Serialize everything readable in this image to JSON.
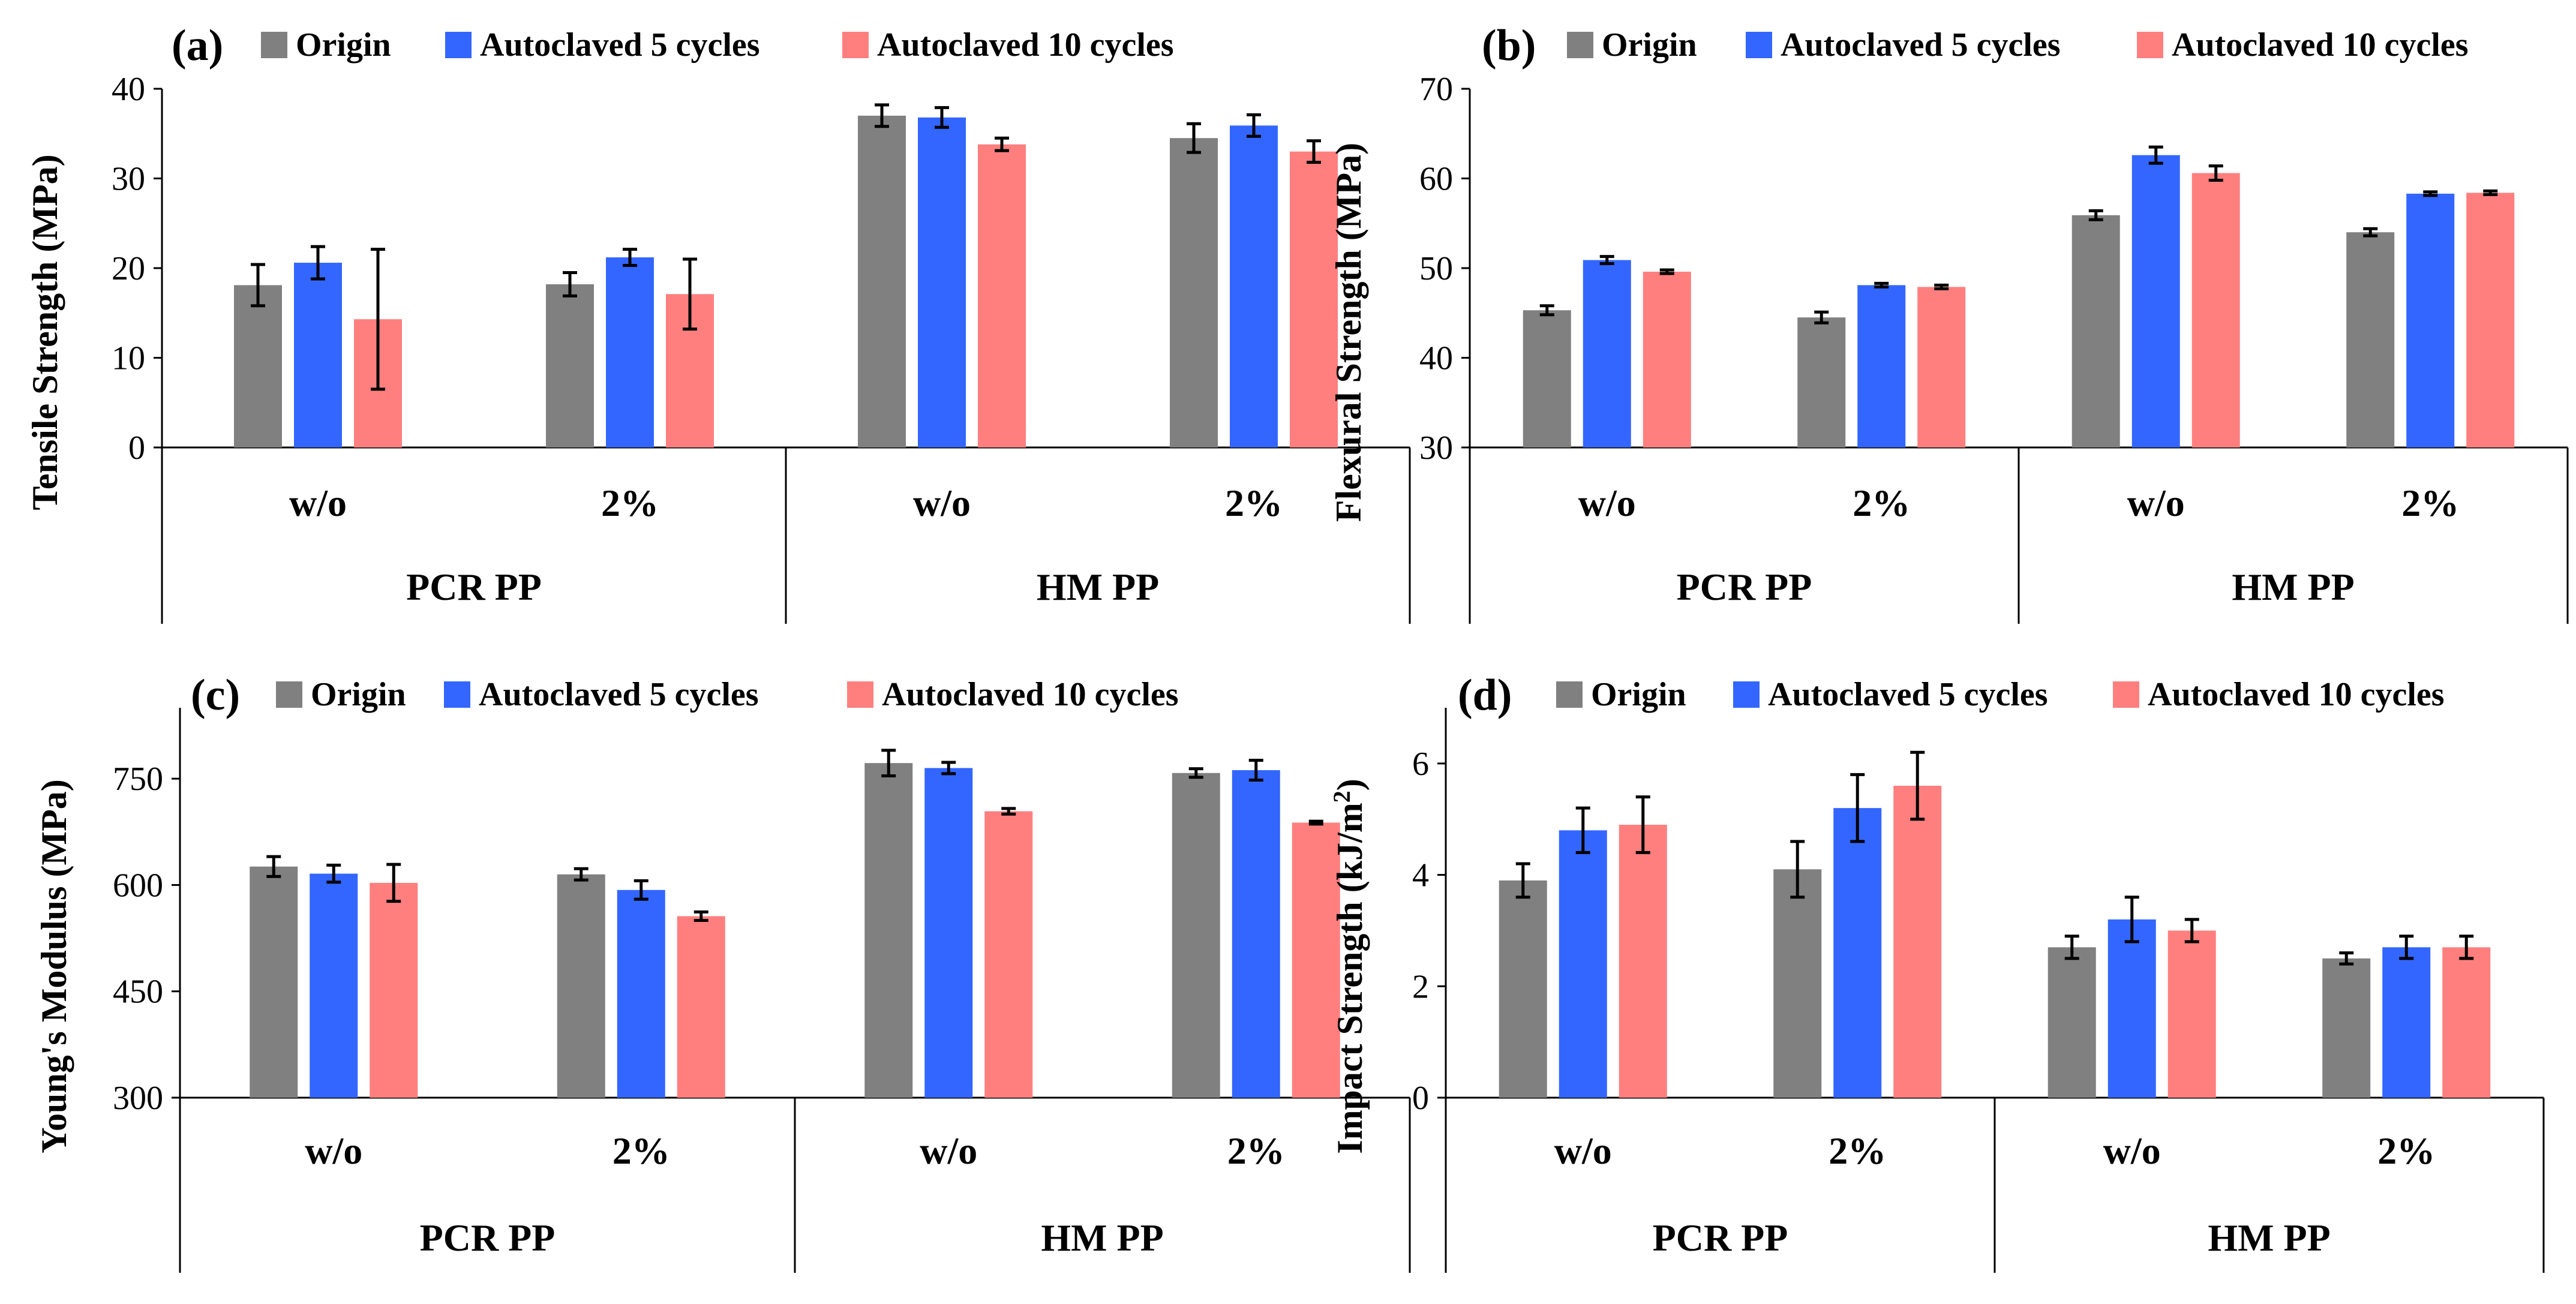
{
  "colors": {
    "origin": "#808080",
    "auto5": "#3366ff",
    "auto10": "#ff7f7f"
  },
  "chart_data": [
    {
      "type": "bar",
      "panel": "(a)",
      "ylabel": "Tensile Strength (MPa)",
      "ylim": [
        0,
        40
      ],
      "yticks": [
        "0",
        "10",
        "20",
        "30",
        "40"
      ],
      "tick_values": [
        0,
        10,
        20,
        30,
        40
      ],
      "categories": [
        "w/o",
        "2%",
        "w/o",
        "2%"
      ],
      "groups": [
        "PCR PP",
        "HM PP"
      ],
      "series": [
        {
          "name": "Origin",
          "values": [
            18.1,
            18.2,
            37.0,
            34.5
          ],
          "errors": [
            2.3,
            1.3,
            1.2,
            1.6
          ]
        },
        {
          "name": "Autoclaved 5 cycles",
          "values": [
            20.6,
            21.2,
            36.8,
            35.9
          ],
          "errors": [
            1.8,
            0.9,
            1.1,
            1.2
          ]
        },
        {
          "name": "Autoclaved 10 cycles",
          "values": [
            14.3,
            17.1,
            33.8,
            33.0
          ],
          "errors": [
            7.8,
            3.9,
            0.7,
            1.2
          ]
        }
      ]
    },
    {
      "type": "bar",
      "panel": "(b)",
      "ylabel": "Flexural Strength (MPa)",
      "ylim": [
        30,
        70
      ],
      "yticks": [
        "30",
        "40",
        "50",
        "60",
        "70"
      ],
      "tick_values": [
        30,
        40,
        50,
        60,
        70
      ],
      "categories": [
        "w/o",
        "2%",
        "w/o",
        "2%"
      ],
      "groups": [
        "PCR PP",
        "HM PP"
      ],
      "series": [
        {
          "name": "Origin",
          "values": [
            45.3,
            44.5,
            55.9,
            54.0
          ],
          "errors": [
            0.5,
            0.6,
            0.5,
            0.4
          ]
        },
        {
          "name": "Autoclaved 5 cycles",
          "values": [
            50.9,
            48.1,
            62.6,
            58.3
          ],
          "errors": [
            0.4,
            0.2,
            0.9,
            0.2
          ]
        },
        {
          "name": "Autoclaved 10 cycles",
          "values": [
            49.6,
            47.9,
            60.6,
            58.4
          ],
          "errors": [
            0.2,
            0.2,
            0.8,
            0.2
          ]
        }
      ]
    },
    {
      "type": "bar",
      "panel": "(c)",
      "ylabel": "Young's Modulus (MPa)",
      "ylim": [
        300,
        850
      ],
      "yticks": [
        "300",
        "450",
        "600",
        "750"
      ],
      "tick_values": [
        300,
        450,
        600,
        750
      ],
      "categories": [
        "w/o",
        "2%",
        "w/o",
        "2%"
      ],
      "groups": [
        "PCR PP",
        "HM PP"
      ],
      "series": [
        {
          "name": "Origin",
          "values": [
            626,
            615,
            772,
            758
          ],
          "errors": [
            14,
            8,
            18,
            6
          ]
        },
        {
          "name": "Autoclaved 5 cycles",
          "values": [
            616,
            593,
            765,
            762
          ],
          "errors": [
            12,
            13,
            8,
            14
          ]
        },
        {
          "name": "Autoclaved 10 cycles",
          "values": [
            603,
            556,
            704,
            688
          ],
          "errors": [
            26,
            6,
            4,
            2
          ]
        }
      ]
    },
    {
      "type": "bar",
      "panel": "(d)",
      "ylabel_main": "Impact Strength (kJ/m",
      "ylabel_sup": "2",
      "ylabel_end": ")",
      "ylim": [
        0,
        7
      ],
      "yticks": [
        "0",
        "2",
        "4",
        "6"
      ],
      "tick_values": [
        0,
        2,
        4,
        6
      ],
      "categories": [
        "w/o",
        "2%",
        "w/o",
        "2%"
      ],
      "groups": [
        "PCR PP",
        "HM PP"
      ],
      "series": [
        {
          "name": "Origin",
          "values": [
            3.9,
            4.1,
            2.7,
            2.5
          ],
          "errors": [
            0.3,
            0.5,
            0.2,
            0.1
          ]
        },
        {
          "name": "Autoclaved 5 cycles",
          "values": [
            4.8,
            5.2,
            3.2,
            2.7
          ],
          "errors": [
            0.4,
            0.6,
            0.4,
            0.2
          ]
        },
        {
          "name": "Autoclaved 10 cycles",
          "values": [
            4.9,
            5.6,
            3.0,
            2.7
          ],
          "errors": [
            0.5,
            0.6,
            0.2,
            0.2
          ]
        }
      ]
    }
  ]
}
